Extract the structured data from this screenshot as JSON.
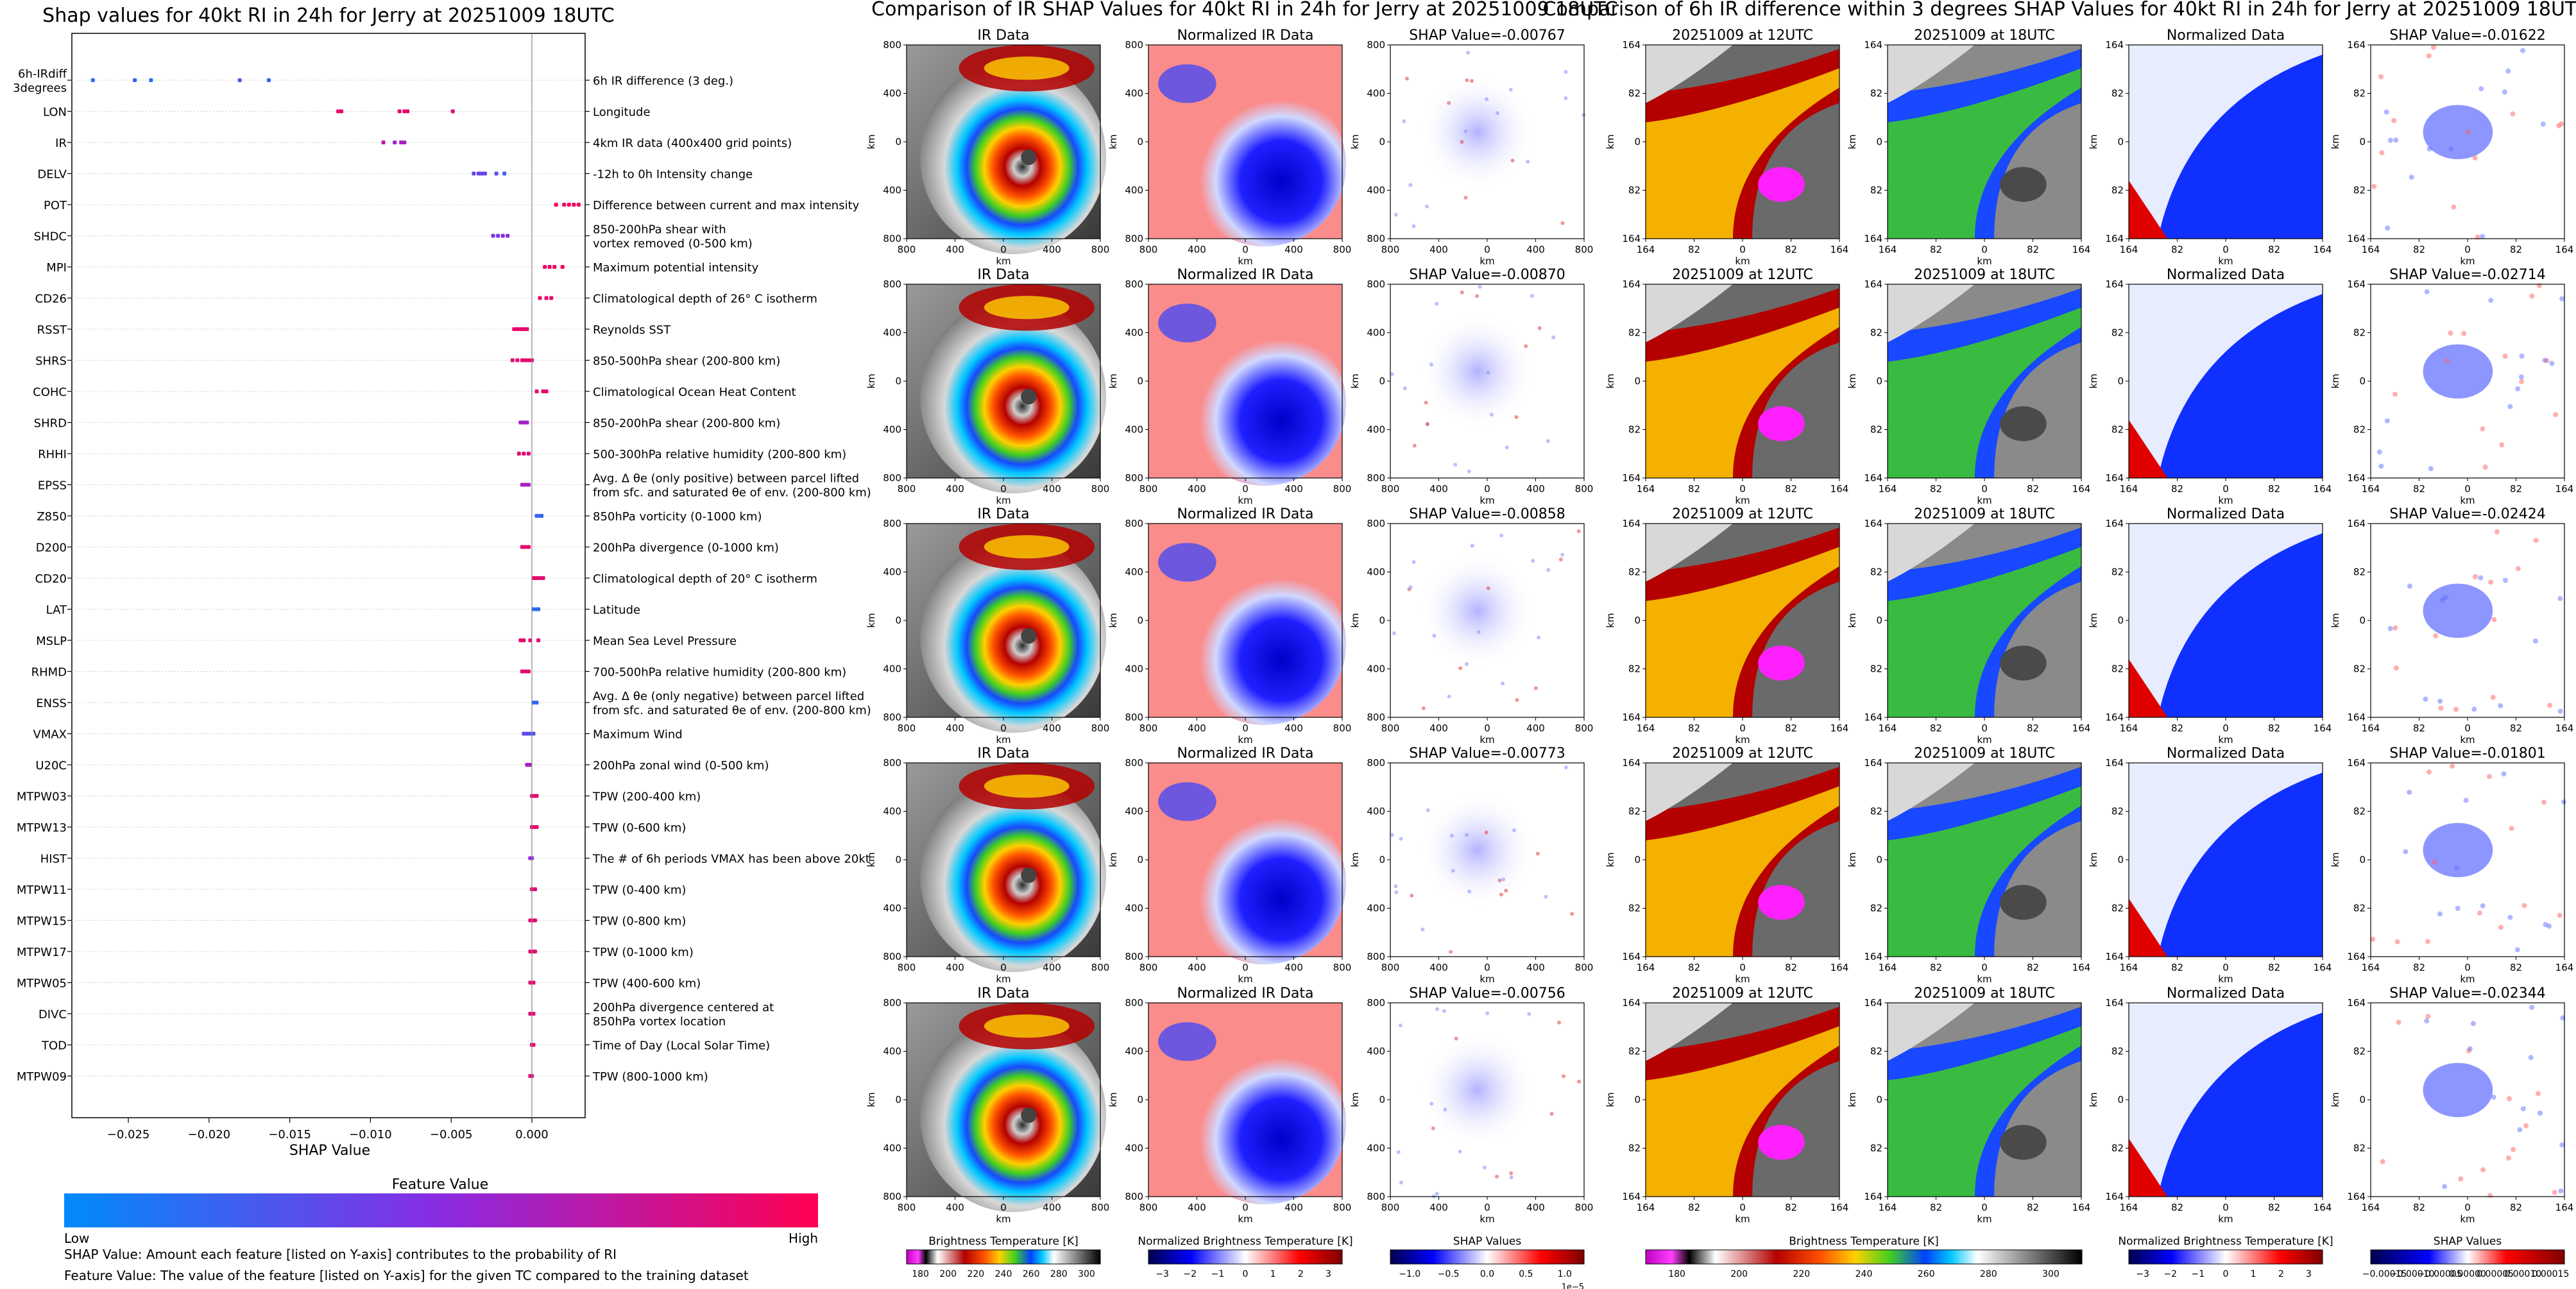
{
  "beeswarm": {
    "title": "Shap values for 40kt RI in 24h for Jerry at 20251009 18UTC",
    "xlabel": "SHAP Value",
    "xticks": [
      "−0.025",
      "−0.020",
      "−0.015",
      "−0.010",
      "−0.005",
      "0.000"
    ],
    "colorbar_title": "Feature Value",
    "colorbar_low": "Low",
    "colorbar_high": "High",
    "note_1": "SHAP Value: Amount each feature [listed on Y-axis] contributes to the probability of RI",
    "note_2": "Feature Value: The value of the feature [listed on Y-axis] for the given TC compared to the training dataset"
  },
  "chart_data": [
    {
      "type": "scatter",
      "title": "Shap values for 40kt RI in 24h for Jerry at 20251009 18UTC",
      "xlabel": "SHAP Value",
      "xlim": [
        -0.0285,
        0.0033
      ],
      "features": [
        {
          "code": [
            "6h-IRdiff",
            "3degrees"
          ],
          "desc": [
            "6h IR difference (3 deg.)"
          ],
          "points": [
            [
              -0.0272,
              0.15
            ],
            [
              -0.0246,
              0.2
            ],
            [
              -0.0236,
              0.1
            ],
            [
              -0.0181,
              0.25
            ],
            [
              -0.0163,
              0.2
            ]
          ]
        },
        {
          "code": [
            "LON"
          ],
          "desc": [
            "Longitude"
          ],
          "points": [
            [
              -0.012,
              0.93
            ],
            [
              -0.0118,
              0.9
            ],
            [
              -0.0082,
              0.88
            ],
            [
              -0.0079,
              0.92
            ],
            [
              -0.0077,
              0.9
            ],
            [
              -0.0049,
              0.85
            ]
          ]
        },
        {
          "code": [
            "IR"
          ],
          "desc": [
            "4km IR data (400x400 grid points)"
          ],
          "points": [
            [
              -0.0092,
              0.7
            ],
            [
              -0.0085,
              0.55
            ],
            [
              -0.0081,
              0.65
            ],
            [
              -0.0079,
              0.6
            ]
          ]
        },
        {
          "code": [
            "DELV"
          ],
          "desc": [
            "-12h to 0h Intensity change"
          ],
          "points": [
            [
              -0.0036,
              0.35
            ],
            [
              -0.0033,
              0.4
            ],
            [
              -0.0031,
              0.35
            ],
            [
              -0.0029,
              0.38
            ],
            [
              -0.0022,
              0.3
            ],
            [
              -0.0017,
              0.25
            ]
          ]
        },
        {
          "code": [
            "POT"
          ],
          "desc": [
            "Difference between current and max intensity"
          ],
          "points": [
            [
              0.0015,
              0.95
            ],
            [
              0.002,
              0.93
            ],
            [
              0.0023,
              0.97
            ],
            [
              0.0026,
              0.95
            ],
            [
              0.0029,
              0.96
            ]
          ]
        },
        {
          "code": [
            "SHDC"
          ],
          "desc": [
            "850-200hPa shear with",
            "vortex removed (0-500 km)"
          ],
          "points": [
            [
              -0.0024,
              0.45
            ],
            [
              -0.0021,
              0.42
            ],
            [
              -0.0018,
              0.5
            ],
            [
              -0.0015,
              0.48
            ]
          ]
        },
        {
          "code": [
            "MPI"
          ],
          "desc": [
            "Maximum potential intensity"
          ],
          "points": [
            [
              0.0008,
              0.93
            ],
            [
              0.0011,
              0.92
            ],
            [
              0.0014,
              0.95
            ],
            [
              0.0019,
              0.94
            ]
          ]
        },
        {
          "code": [
            "CD26"
          ],
          "desc": [
            "Climatological depth of 26° C isotherm"
          ],
          "points": [
            [
              0.0005,
              0.92
            ],
            [
              0.0009,
              0.9
            ],
            [
              0.0012,
              0.93
            ]
          ]
        },
        {
          "code": [
            "RSST"
          ],
          "desc": [
            "Reynolds SST"
          ],
          "points": [
            [
              -0.0011,
              0.9
            ],
            [
              -0.0009,
              0.92
            ],
            [
              -0.0007,
              0.88
            ],
            [
              -0.0005,
              0.9
            ],
            [
              -0.0003,
              0.91
            ]
          ]
        },
        {
          "code": [
            "SHRS"
          ],
          "desc": [
            "850-500hPa shear (200-800 km)"
          ],
          "points": [
            [
              -0.0012,
              0.9
            ],
            [
              -0.0009,
              0.88
            ],
            [
              -0.0006,
              0.92
            ],
            [
              -0.0004,
              0.9
            ],
            [
              -0.0002,
              0.89
            ],
            [
              0.0,
              0.91
            ]
          ]
        },
        {
          "code": [
            "COHC"
          ],
          "desc": [
            "Climatological Ocean Heat Content"
          ],
          "points": [
            [
              0.0003,
              0.92
            ],
            [
              0.0007,
              0.9
            ],
            [
              0.0009,
              0.88
            ]
          ]
        },
        {
          "code": [
            "SHRD"
          ],
          "desc": [
            "850-200hPa shear (200-800 km)"
          ],
          "points": [
            [
              -0.0007,
              0.6
            ],
            [
              -0.0005,
              0.62
            ],
            [
              -0.0003,
              0.58
            ]
          ]
        },
        {
          "code": [
            "RHHI"
          ],
          "desc": [
            "500-300hPa relative humidity (200-800 km)"
          ],
          "points": [
            [
              -0.0008,
              0.88
            ],
            [
              -0.0005,
              0.9
            ],
            [
              -0.0002,
              0.86
            ]
          ]
        },
        {
          "code": [
            "EPSS"
          ],
          "desc": [
            "Avg. Δ θe (only positive) between parcel lifted",
            "from sfc. and saturated θe of env. (200-800 km)"
          ],
          "points": [
            [
              -0.0006,
              0.65
            ],
            [
              -0.0004,
              0.6
            ],
            [
              -0.0002,
              0.62
            ]
          ]
        },
        {
          "code": [
            "Z850"
          ],
          "desc": [
            "850hPa vorticity (0-1000 km)"
          ],
          "points": [
            [
              0.0003,
              0.2
            ],
            [
              0.0005,
              0.18
            ],
            [
              0.0006,
              0.22
            ]
          ]
        },
        {
          "code": [
            "D200"
          ],
          "desc": [
            "200hPa divergence (0-1000 km)"
          ],
          "points": [
            [
              -0.0006,
              0.92
            ],
            [
              -0.0004,
              0.9
            ],
            [
              -0.0002,
              0.91
            ]
          ]
        },
        {
          "code": [
            "CD20"
          ],
          "desc": [
            "Climatological depth of 20° C isotherm"
          ],
          "points": [
            [
              0.0001,
              0.9
            ],
            [
              0.0003,
              0.92
            ],
            [
              0.0005,
              0.88
            ],
            [
              0.0007,
              0.9
            ]
          ]
        },
        {
          "code": [
            "LAT"
          ],
          "desc": [
            "Latitude"
          ],
          "points": [
            [
              0.0001,
              0.15
            ],
            [
              0.0003,
              0.12
            ],
            [
              0.0004,
              0.18
            ]
          ]
        },
        {
          "code": [
            "MSLP"
          ],
          "desc": [
            "Mean Sea Level Pressure"
          ],
          "points": [
            [
              -0.0007,
              0.88
            ],
            [
              -0.0005,
              0.9
            ],
            [
              -0.0001,
              0.9
            ],
            [
              0.0004,
              0.86
            ]
          ]
        },
        {
          "code": [
            "RHMD"
          ],
          "desc": [
            "700-500hPa relative humidity (200-800 km)"
          ],
          "points": [
            [
              -0.0006,
              0.9
            ],
            [
              -0.0004,
              0.88
            ],
            [
              -0.0002,
              0.92
            ]
          ]
        },
        {
          "code": [
            "ENSS"
          ],
          "desc": [
            "Avg. Δ θe (only negative) between parcel lifted",
            "from sfc. and saturated θe of env. (200-800 km)"
          ],
          "points": [
            [
              0.0001,
              0.15
            ],
            [
              0.0003,
              0.18
            ]
          ]
        },
        {
          "code": [
            "VMAX"
          ],
          "desc": [
            "Maximum Wind"
          ],
          "points": [
            [
              -0.0005,
              0.35
            ],
            [
              -0.0003,
              0.38
            ],
            [
              -0.0001,
              0.3
            ],
            [
              0.0001,
              0.32
            ]
          ]
        },
        {
          "code": [
            "U20C"
          ],
          "desc": [
            "200hPa zonal wind (0-500 km)"
          ],
          "points": [
            [
              -0.0003,
              0.6
            ],
            [
              -0.0001,
              0.62
            ]
          ]
        },
        {
          "code": [
            "MTPW03"
          ],
          "desc": [
            "TPW (200-400 km)"
          ],
          "points": [
            [
              0.0,
              0.9
            ],
            [
              0.0002,
              0.88
            ],
            [
              0.0003,
              0.92
            ]
          ]
        },
        {
          "code": [
            "MTPW13"
          ],
          "desc": [
            "TPW (0-600 km)"
          ],
          "points": [
            [
              0.0,
              0.9
            ],
            [
              0.0002,
              0.88
            ],
            [
              0.0003,
              0.91
            ]
          ]
        },
        {
          "code": [
            "HIST"
          ],
          "desc": [
            "The # of 6h periods VMAX has been above 20kt"
          ],
          "points": [
            [
              -0.0001,
              0.55
            ],
            [
              0.0,
              0.5
            ]
          ]
        },
        {
          "code": [
            "MTPW11"
          ],
          "desc": [
            "TPW (0-400 km)"
          ],
          "points": [
            [
              0.0,
              0.9
            ],
            [
              0.0002,
              0.88
            ]
          ]
        },
        {
          "code": [
            "MTPW15"
          ],
          "desc": [
            "TPW (0-800 km)"
          ],
          "points": [
            [
              -0.0001,
              0.9
            ],
            [
              0.0001,
              0.92
            ],
            [
              0.0002,
              0.88
            ]
          ]
        },
        {
          "code": [
            "MTPW17"
          ],
          "desc": [
            "TPW (0-1000 km)"
          ],
          "points": [
            [
              -0.0001,
              0.9
            ],
            [
              0.0001,
              0.88
            ],
            [
              0.0002,
              0.92
            ]
          ]
        },
        {
          "code": [
            "MTPW05"
          ],
          "desc": [
            "TPW (400-600 km)"
          ],
          "points": [
            [
              -0.0001,
              0.9
            ],
            [
              0.0001,
              0.88
            ]
          ]
        },
        {
          "code": [
            "DIVC"
          ],
          "desc": [
            "200hPa divergence centered at",
            "850hPa vortex location"
          ],
          "points": [
            [
              -0.0001,
              0.9
            ],
            [
              0.0001,
              0.85
            ]
          ]
        },
        {
          "code": [
            "TOD"
          ],
          "desc": [
            "Time of Day (Local Solar Time)"
          ],
          "points": [
            [
              0.0,
              0.88
            ],
            [
              0.0001,
              0.9
            ]
          ]
        },
        {
          "code": [
            "MTPW09"
          ],
          "desc": [
            "TPW (800-1000 km)"
          ],
          "points": [
            [
              -0.0001,
              0.9
            ],
            [
              0.0,
              0.88
            ]
          ]
        }
      ]
    },
    {
      "type": "heatmap",
      "title": "Comparison of IR SHAP Values for 40kt RI in 24h for Jerry at 20251009 18UTC",
      "columns": [
        "IR Data",
        "Normalized IR Data",
        "SHAP Value"
      ],
      "shap_values": [
        "SHAP Value=-0.00767",
        "SHAP Value=-0.00870",
        "SHAP Value=-0.00858",
        "SHAP Value=-0.00773",
        "SHAP Value=-0.00756"
      ],
      "xlabel": "km",
      "ylabel": "km",
      "xticks": [
        "800",
        "400",
        "0",
        "400",
        "800"
      ],
      "yticks": [
        "800",
        "400",
        "0",
        "400",
        "800"
      ],
      "colorbars": [
        {
          "label": "Brightness Temperature [K]",
          "ticks": [
            "180",
            "200",
            "220",
            "240",
            "260",
            "280",
            "300"
          ]
        },
        {
          "label": "Normalized Brightness Temperature [K]",
          "ticks": [
            "−3",
            "−2",
            "−1",
            "0",
            "1",
            "2",
            "3"
          ]
        },
        {
          "label": "SHAP Values",
          "ticks": [
            "−1.0",
            "−0.5",
            "0.0",
            "0.5",
            "1.0"
          ],
          "offset": "1e−5"
        }
      ]
    },
    {
      "type": "heatmap",
      "title": "Comparison of 6h IR difference within 3 degrees SHAP Values for 40kt RI in 24h for Jerry at 20251009 18UTC",
      "columns": [
        "20251009 at 12UTC",
        "20251009 at 18UTC",
        "Normalized Data",
        "SHAP Value"
      ],
      "shap_values": [
        "SHAP Value=-0.01622",
        "SHAP Value=-0.02714",
        "SHAP Value=-0.02424",
        "SHAP Value=-0.01801",
        "SHAP Value=-0.02344"
      ],
      "xlabel": "km",
      "ylabel": "km",
      "xticks": [
        "164",
        "82",
        "0",
        "82",
        "164"
      ],
      "yticks": [
        "164",
        "82",
        "0",
        "82",
        "164"
      ],
      "colorbars": [
        {
          "label": "Brightness Temperature [K]",
          "ticks": [
            "180",
            "200",
            "220",
            "240",
            "260",
            "280",
            "300"
          ]
        },
        {
          "label": "Normalized Brightness Temperature [K]",
          "ticks": [
            "−3",
            "−2",
            "−1",
            "0",
            "1",
            "2",
            "3"
          ]
        },
        {
          "label": "SHAP Values",
          "ticks": [
            "−0.00015",
            "−0.00010",
            "−0.00005",
            "0.00000",
            "0.00005",
            "0.00010",
            "0.00015"
          ]
        }
      ]
    }
  ],
  "colors": {
    "low": "#008bfb",
    "mid": "#8a2be2",
    "high": "#ff0052"
  }
}
